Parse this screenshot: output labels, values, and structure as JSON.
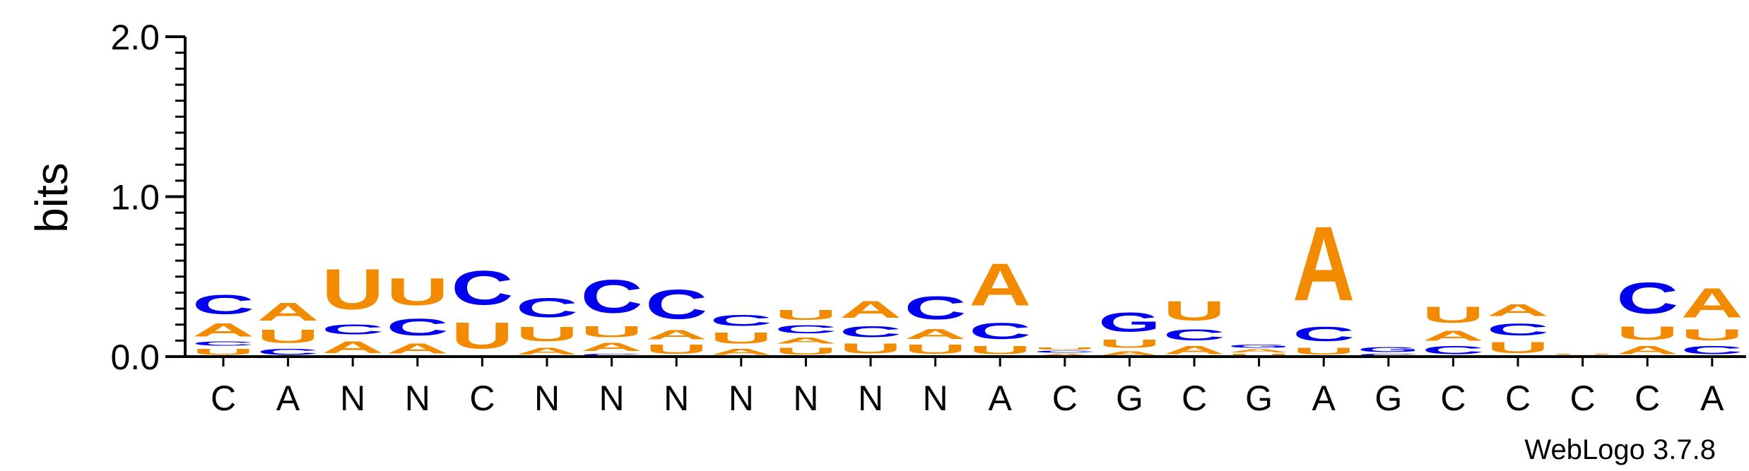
{
  "footer_text": "WebLogo 3.7.8",
  "chart_data": {
    "type": "sequence-logo",
    "ylabel": "bits",
    "ylim": [
      0,
      2.0
    ],
    "yticks": [
      "0.0",
      "1.0",
      "2.0"
    ],
    "colors": {
      "A": "#f28b00",
      "U": "#f28b00",
      "C": "#0000ee",
      "G": "#0000ee"
    },
    "positions": [
      {
        "label": "C",
        "stack": [
          [
            "U",
            0.06
          ],
          [
            "C",
            0.04
          ],
          [
            "A",
            0.13
          ],
          [
            "C",
            0.19
          ]
        ]
      },
      {
        "label": "A",
        "stack": [
          [
            "C",
            0.06
          ],
          [
            "U",
            0.13
          ],
          [
            "A",
            0.18
          ]
        ]
      },
      {
        "label": "N",
        "stack": [
          [
            "A",
            0.12
          ],
          [
            "C",
            0.1
          ],
          [
            "U",
            0.4
          ]
        ]
      },
      {
        "label": "N",
        "stack": [
          [
            "A",
            0.1
          ],
          [
            "C",
            0.17
          ],
          [
            "U",
            0.27
          ]
        ]
      },
      {
        "label": "C",
        "stack": [
          [
            "U",
            0.26
          ],
          [
            "C",
            0.34
          ]
        ]
      },
      {
        "label": "N",
        "stack": [
          [
            "A",
            0.07
          ],
          [
            "U",
            0.14
          ],
          [
            "C",
            0.19
          ]
        ]
      },
      {
        "label": "N",
        "stack": [
          [
            "C",
            0.02
          ],
          [
            "A",
            0.08
          ],
          [
            "U",
            0.11
          ],
          [
            "C",
            0.33
          ]
        ]
      },
      {
        "label": "N",
        "stack": [
          [
            "U",
            0.09
          ],
          [
            "A",
            0.09
          ],
          [
            "C",
            0.29
          ]
        ]
      },
      {
        "label": "N",
        "stack": [
          [
            "A",
            0.06
          ],
          [
            "U",
            0.11
          ],
          [
            "C",
            0.11
          ]
        ]
      },
      {
        "label": "N",
        "stack": [
          [
            "U",
            0.07
          ],
          [
            "A",
            0.06
          ],
          [
            "C",
            0.08
          ],
          [
            "U",
            0.1
          ]
        ]
      },
      {
        "label": "N",
        "stack": [
          [
            "U",
            0.1
          ],
          [
            "C",
            0.11
          ],
          [
            "A",
            0.17
          ]
        ]
      },
      {
        "label": "N",
        "stack": [
          [
            "U",
            0.09
          ],
          [
            "A",
            0.1
          ],
          [
            "C",
            0.23
          ]
        ]
      },
      {
        "label": "A",
        "stack": [
          [
            "U",
            0.08
          ],
          [
            "C",
            0.16
          ],
          [
            "A",
            0.42
          ]
        ]
      },
      {
        "label": "C",
        "stack": [
          [
            "A",
            0.02
          ],
          [
            "C",
            0.02
          ],
          [
            "U",
            0.02
          ]
        ]
      },
      {
        "label": "G",
        "stack": [
          [
            "A",
            0.04
          ],
          [
            "U",
            0.08
          ],
          [
            "G",
            0.19
          ]
        ]
      },
      {
        "label": "C",
        "stack": [
          [
            "A",
            0.08
          ],
          [
            "C",
            0.11
          ],
          [
            "U",
            0.19
          ]
        ]
      },
      {
        "label": "G",
        "stack": [
          [
            "U",
            0.02
          ],
          [
            "A",
            0.03
          ],
          [
            "G",
            0.03
          ]
        ]
      },
      {
        "label": "A",
        "stack": [
          [
            "U",
            0.07
          ],
          [
            "C",
            0.14
          ],
          [
            "A",
            0.74
          ]
        ]
      },
      {
        "label": "G",
        "stack": [
          [
            "C",
            0.02
          ],
          [
            "G",
            0.05
          ]
        ]
      },
      {
        "label": "C",
        "stack": [
          [
            "C",
            0.08
          ],
          [
            "A",
            0.1
          ],
          [
            "U",
            0.16
          ]
        ]
      },
      {
        "label": "C",
        "stack": [
          [
            "U",
            0.11
          ],
          [
            "C",
            0.12
          ],
          [
            "A",
            0.12
          ]
        ]
      },
      {
        "label": "C",
        "stack": [
          [
            "A",
            0.01
          ],
          [
            "U",
            0.01
          ]
        ]
      },
      {
        "label": "C",
        "stack": [
          [
            "A",
            0.08
          ],
          [
            "U",
            0.13
          ],
          [
            "C",
            0.31
          ]
        ]
      },
      {
        "label": "A",
        "stack": [
          [
            "C",
            0.08
          ],
          [
            "U",
            0.11
          ],
          [
            "A",
            0.29
          ]
        ]
      }
    ]
  }
}
